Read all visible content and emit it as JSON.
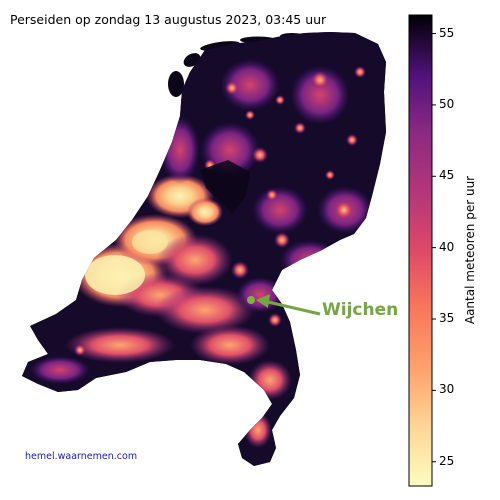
{
  "title": "Perseiden op zondag 13 augustus 2023, 03:45 uur",
  "credit": "hemel.waarnemen.com",
  "annotation": {
    "label": "Wijchen",
    "color": "#76a544"
  },
  "colorbar": {
    "label": "Aantal meteoren per uur",
    "min": 23.3,
    "max": 56.3,
    "ticks": [
      25,
      30,
      35,
      40,
      45,
      50,
      55
    ],
    "colormap": "magma"
  },
  "colors": {
    "background": "#ffffff",
    "map_dark": "#0c0618",
    "map_bright": "#fbf3b4"
  }
}
